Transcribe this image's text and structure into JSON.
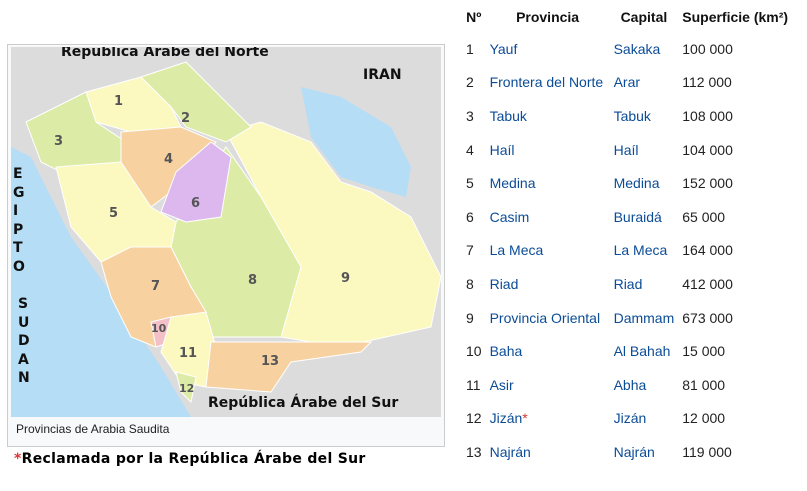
{
  "map": {
    "labels": {
      "north": "República Árabe del Norte",
      "iran": "IRAN",
      "egypt": "EGIPTO",
      "sudan": "SUDAN",
      "south": "República Árabe del Sur"
    },
    "caption": "Provincias de Arabia Saudita",
    "colors": {
      "land": "#dcdcdc",
      "sea": "#b5ddf6",
      "yellow": "#fbf8c0",
      "green": "#dceba6",
      "orange": "#f7d2a0",
      "purple": "#dcb8ee",
      "pink": "#f4c0c8"
    }
  },
  "note": {
    "star": "*",
    "text": "Reclamada por la República Árabe del Sur"
  },
  "table": {
    "headers": [
      "Nº",
      "Provincia",
      "Capital",
      "Superficie (km²)"
    ],
    "rows": [
      {
        "n": "1",
        "prov": "Yauf",
        "cap": "Sakaka",
        "area": "100 000"
      },
      {
        "n": "2",
        "prov": "Frontera del Norte",
        "cap": "Arar",
        "area": "112 000"
      },
      {
        "n": "3",
        "prov": "Tabuk",
        "cap": "Tabuk",
        "area": "108 000"
      },
      {
        "n": "4",
        "prov": "Haíl",
        "cap": "Haíl",
        "area": "104 000"
      },
      {
        "n": "5",
        "prov": "Medina",
        "cap": "Medina",
        "area": "152 000"
      },
      {
        "n": "6",
        "prov": "Casim",
        "cap": "Buraidá",
        "area": "65 000"
      },
      {
        "n": "7",
        "prov": "La Meca",
        "cap": "La Meca",
        "area": "164 000"
      },
      {
        "n": "8",
        "prov": "Riad",
        "cap": "Riad",
        "area": "412 000"
      },
      {
        "n": "9",
        "prov": "Provincia Oriental",
        "cap": "Dammam",
        "area": "673 000"
      },
      {
        "n": "10",
        "prov": "Baha",
        "cap": "Al Bahah",
        "area": "15 000"
      },
      {
        "n": "11",
        "prov": "Asir",
        "cap": "Abha",
        "area": "81 000"
      },
      {
        "n": "12",
        "prov": "Jizán",
        "cap": "Jizán",
        "area": "12 000",
        "star": "*"
      },
      {
        "n": "13",
        "prov": "Najrán",
        "cap": "Najrán",
        "area": "119 000"
      }
    ]
  }
}
